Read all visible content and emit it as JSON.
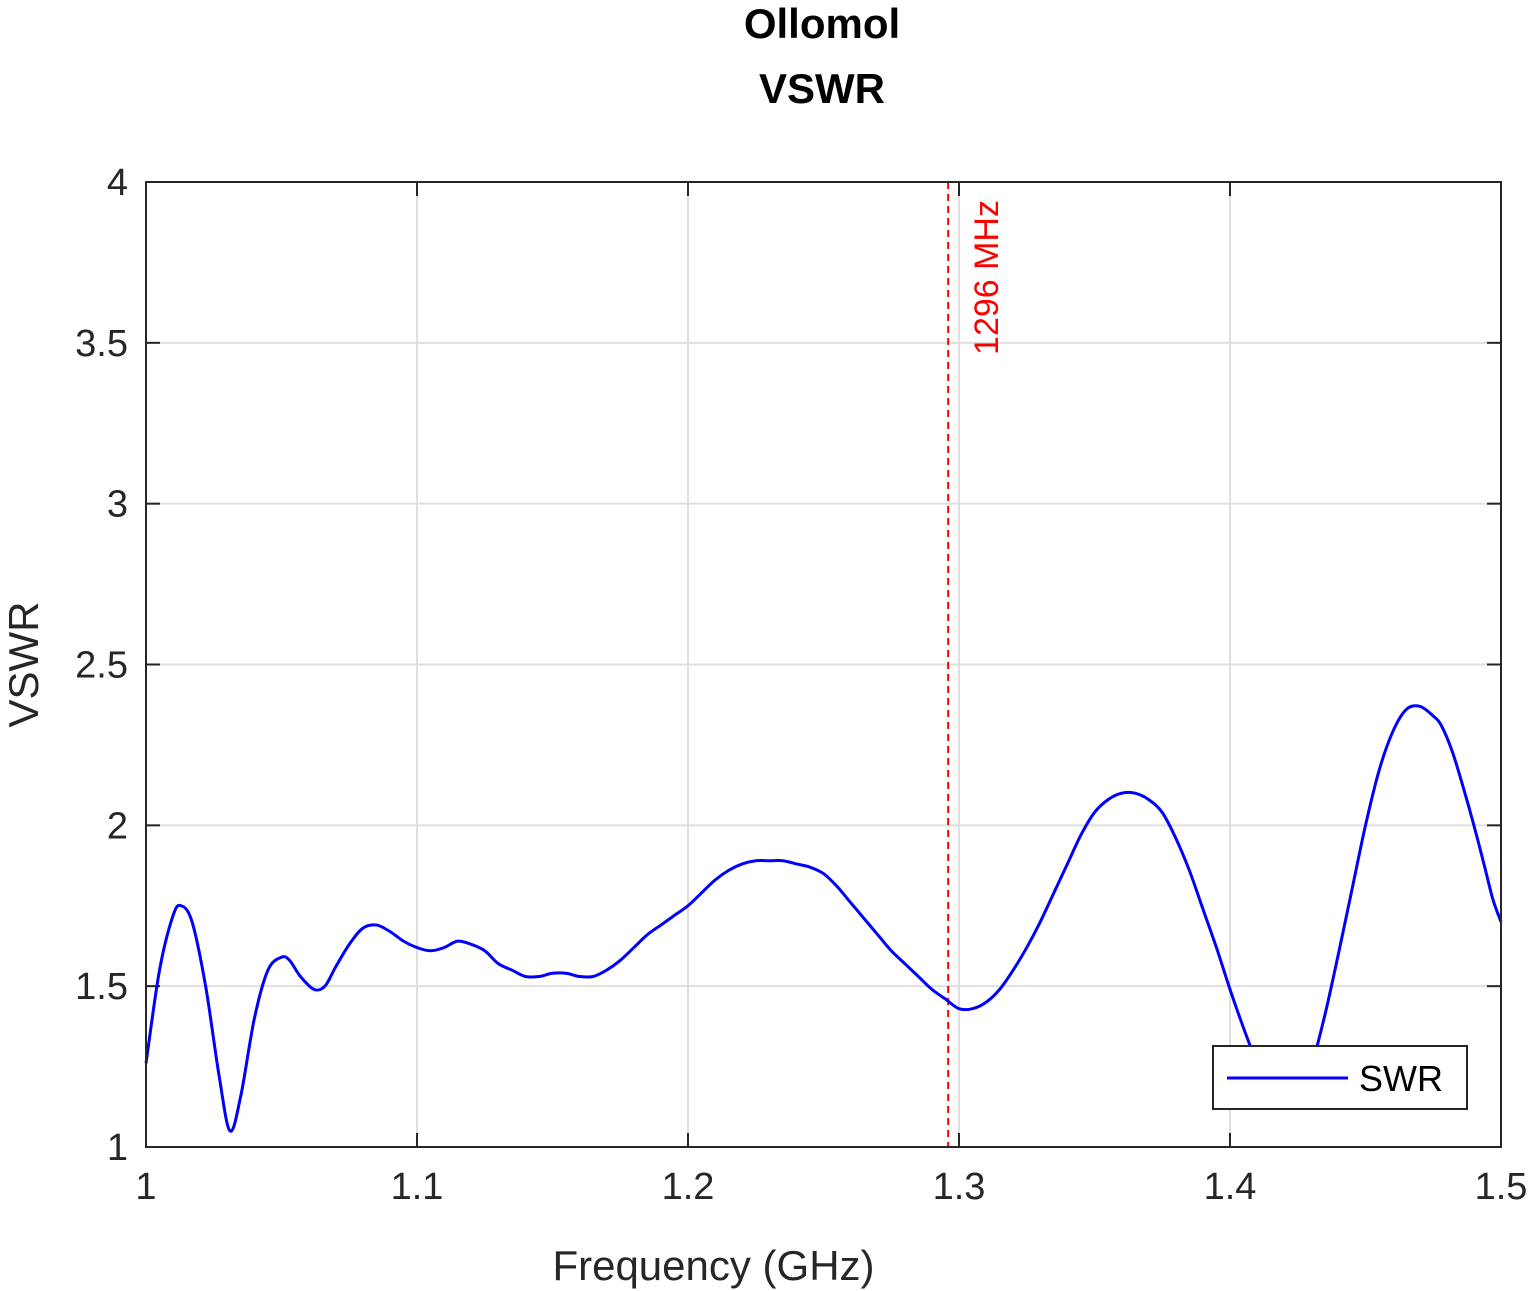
{
  "chart_data": {
    "type": "line",
    "title": [
      "Ollomol",
      "VSWR"
    ],
    "xlabel": "Frequency (GHz)",
    "ylabel": "VSWR",
    "xlim": [
      1,
      1.5
    ],
    "ylim": [
      1,
      4
    ],
    "xticks": [
      1,
      1.1,
      1.2,
      1.3,
      1.4,
      1.5
    ],
    "xtick_labels": [
      "1",
      "1.1",
      "1.2",
      "1.3",
      "1.4",
      "1.5"
    ],
    "yticks": [
      1,
      1.5,
      2,
      2.5,
      3,
      3.5,
      4
    ],
    "ytick_labels": [
      "1",
      "1.5",
      "2",
      "2.5",
      "3",
      "3.5",
      "4"
    ],
    "grid": true,
    "legend_position": "bottom-right",
    "marker": {
      "x": 1.296,
      "label": "1296 MHz",
      "color": "#ff0000",
      "style": "dashed"
    },
    "series": [
      {
        "name": "SWR",
        "color": "#0000ff",
        "x": [
          1.0,
          1.005,
          1.01,
          1.013,
          1.017,
          1.022,
          1.027,
          1.031,
          1.035,
          1.04,
          1.045,
          1.05,
          1.053,
          1.057,
          1.062,
          1.066,
          1.07,
          1.075,
          1.08,
          1.085,
          1.09,
          1.095,
          1.1,
          1.105,
          1.11,
          1.115,
          1.12,
          1.125,
          1.13,
          1.135,
          1.14,
          1.145,
          1.15,
          1.155,
          1.16,
          1.165,
          1.17,
          1.175,
          1.18,
          1.185,
          1.19,
          1.195,
          1.2,
          1.205,
          1.21,
          1.215,
          1.22,
          1.225,
          1.23,
          1.235,
          1.24,
          1.245,
          1.25,
          1.255,
          1.26,
          1.265,
          1.27,
          1.275,
          1.28,
          1.285,
          1.29,
          1.295,
          1.3,
          1.305,
          1.31,
          1.315,
          1.32,
          1.325,
          1.33,
          1.335,
          1.34,
          1.345,
          1.35,
          1.355,
          1.36,
          1.365,
          1.37,
          1.375,
          1.38,
          1.385,
          1.39,
          1.395,
          1.4,
          1.405,
          1.41,
          1.415,
          1.42,
          1.425,
          1.43,
          1.435,
          1.44,
          1.445,
          1.45,
          1.455,
          1.46,
          1.465,
          1.47,
          1.475,
          1.478,
          1.482,
          1.486,
          1.49,
          1.494,
          1.497,
          1.5
        ],
        "values": [
          1.26,
          1.55,
          1.72,
          1.75,
          1.7,
          1.5,
          1.22,
          1.05,
          1.16,
          1.4,
          1.55,
          1.59,
          1.58,
          1.53,
          1.49,
          1.5,
          1.56,
          1.63,
          1.68,
          1.69,
          1.67,
          1.64,
          1.62,
          1.61,
          1.62,
          1.64,
          1.63,
          1.61,
          1.57,
          1.55,
          1.53,
          1.53,
          1.54,
          1.54,
          1.53,
          1.53,
          1.55,
          1.58,
          1.62,
          1.66,
          1.69,
          1.72,
          1.75,
          1.79,
          1.83,
          1.86,
          1.88,
          1.89,
          1.89,
          1.89,
          1.88,
          1.87,
          1.85,
          1.81,
          1.76,
          1.71,
          1.66,
          1.61,
          1.57,
          1.53,
          1.49,
          1.46,
          1.43,
          1.43,
          1.45,
          1.49,
          1.55,
          1.62,
          1.7,
          1.79,
          1.88,
          1.97,
          2.04,
          2.08,
          2.1,
          2.1,
          2.08,
          2.04,
          1.96,
          1.86,
          1.74,
          1.62,
          1.49,
          1.37,
          1.26,
          1.17,
          1.13,
          1.15,
          1.25,
          1.41,
          1.6,
          1.8,
          2.0,
          2.17,
          2.29,
          2.36,
          2.37,
          2.34,
          2.31,
          2.23,
          2.12,
          2.0,
          1.87,
          1.77,
          1.7
        ]
      }
    ]
  }
}
